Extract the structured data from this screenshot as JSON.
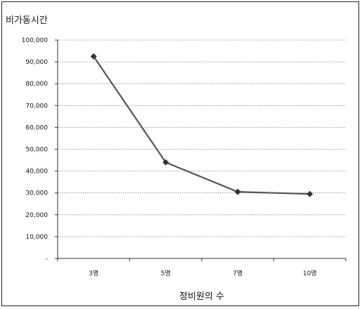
{
  "chart_data": {
    "type": "line",
    "title": "",
    "ylabel": "비가동시간",
    "xlabel": "정비원의 수",
    "categories": [
      "3명",
      "5명",
      "7명",
      "10명"
    ],
    "series": [
      {
        "values": [
          92500,
          44000,
          30500,
          29500
        ]
      }
    ],
    "ylim": [
      0,
      100000
    ],
    "yticks": [
      0,
      10000,
      20000,
      30000,
      40000,
      50000,
      60000,
      70000,
      80000,
      90000,
      100000
    ],
    "ytick_labels": [
      "-",
      "10,000",
      "20,000",
      "30,000",
      "40,000",
      "50,000",
      "60,000",
      "70,000",
      "80,000",
      "90,000",
      "100,000"
    ],
    "grid": true,
    "legend": "none",
    "colors": {
      "line": "#555555",
      "marker": "#333333",
      "grid": "#888888"
    }
  }
}
